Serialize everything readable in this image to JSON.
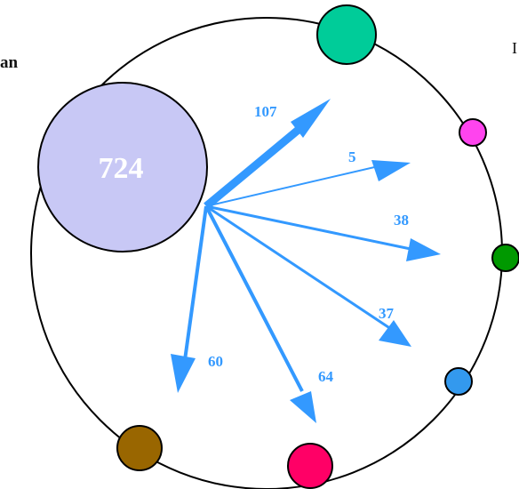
{
  "left_edge_text": "an",
  "right_edge_text": "I",
  "center_circle": {
    "label": "724",
    "fill": "#c8c8f5",
    "text_color": "#ffffff"
  },
  "arrow_color": "#3399ff",
  "arrows": [
    {
      "label": "107"
    },
    {
      "label": "5"
    },
    {
      "label": "38"
    },
    {
      "label": "37"
    },
    {
      "label": "64"
    },
    {
      "label": "60"
    }
  ],
  "nodes": [
    {
      "name": "node-teal",
      "color": "#00cc99"
    },
    {
      "name": "node-magenta",
      "color": "#ff44ee"
    },
    {
      "name": "node-green",
      "color": "#009900"
    },
    {
      "name": "node-blue",
      "color": "#3399ee"
    },
    {
      "name": "node-crimson",
      "color": "#ff0066"
    },
    {
      "name": "node-brown",
      "color": "#996600"
    }
  ]
}
